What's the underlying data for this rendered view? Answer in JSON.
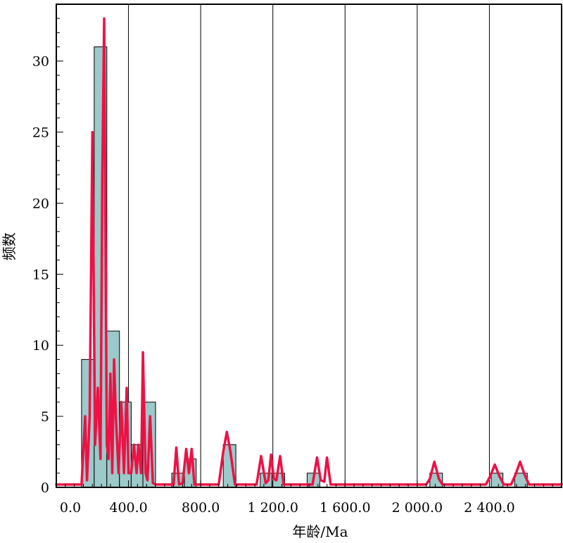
{
  "chart_data": {
    "type": "bar",
    "xlabel": "年龄/Ma",
    "ylabel": "频数",
    "xlim": [
      0,
      2800
    ],
    "ylim": [
      0,
      34
    ],
    "x_ticks": [
      0,
      400,
      800,
      1200,
      1600,
      2000,
      2400
    ],
    "x_tick_labels": [
      "0.0",
      "400.0",
      "800.0",
      "1 200.0",
      "1 600.0",
      "2 000.0",
      "2 400.0"
    ],
    "y_ticks": [
      0,
      5,
      10,
      15,
      20,
      25,
      30
    ],
    "y_tick_labels": [
      "0",
      "5",
      "10",
      "15",
      "20",
      "25",
      "30"
    ],
    "grid": "vertical lines at major x ticks",
    "colors": {
      "bar_fill": "#9cc9c9",
      "bar_stroke": "#000000",
      "curve": "#ee1144"
    },
    "bins": [
      {
        "x0": 140,
        "x1": 210,
        "count": 9
      },
      {
        "x0": 210,
        "x1": 280,
        "count": 31
      },
      {
        "x0": 280,
        "x1": 350,
        "count": 11
      },
      {
        "x0": 350,
        "x1": 415,
        "count": 6
      },
      {
        "x0": 415,
        "x1": 480,
        "count": 3
      },
      {
        "x0": 480,
        "x1": 550,
        "count": 6
      },
      {
        "x0": 640,
        "x1": 710,
        "count": 1
      },
      {
        "x0": 710,
        "x1": 775,
        "count": 2
      },
      {
        "x0": 925,
        "x1": 995,
        "count": 3
      },
      {
        "x0": 1130,
        "x1": 1195,
        "count": 1
      },
      {
        "x0": 1195,
        "x1": 1265,
        "count": 1
      },
      {
        "x0": 1390,
        "x1": 1460,
        "count": 1
      },
      {
        "x0": 2070,
        "x1": 2140,
        "count": 1
      },
      {
        "x0": 2410,
        "x1": 2475,
        "count": 1
      },
      {
        "x0": 2540,
        "x1": 2610,
        "count": 1
      }
    ],
    "probability_density_curve": [
      [
        0,
        0.2
      ],
      [
        140,
        0.2
      ],
      [
        160,
        5
      ],
      [
        170,
        0.5
      ],
      [
        185,
        5
      ],
      [
        200,
        25
      ],
      [
        215,
        3
      ],
      [
        230,
        7
      ],
      [
        245,
        2
      ],
      [
        255,
        22
      ],
      [
        265,
        33
      ],
      [
        280,
        3
      ],
      [
        290,
        2
      ],
      [
        300,
        8
      ],
      [
        310,
        1
      ],
      [
        320,
        9
      ],
      [
        330,
        5
      ],
      [
        345,
        1
      ],
      [
        360,
        6
      ],
      [
        375,
        1
      ],
      [
        390,
        7
      ],
      [
        400,
        1
      ],
      [
        415,
        1
      ],
      [
        430,
        3
      ],
      [
        445,
        1
      ],
      [
        455,
        3
      ],
      [
        470,
        1
      ],
      [
        480,
        9.5
      ],
      [
        495,
        1
      ],
      [
        505,
        0.5
      ],
      [
        520,
        5
      ],
      [
        535,
        0.3
      ],
      [
        550,
        0.2
      ],
      [
        650,
        0.2
      ],
      [
        665,
        2.8
      ],
      [
        680,
        0.2
      ],
      [
        700,
        0.3
      ],
      [
        720,
        2.7
      ],
      [
        735,
        1
      ],
      [
        750,
        2.7
      ],
      [
        765,
        0.2
      ],
      [
        900,
        0.2
      ],
      [
        925,
        2.5
      ],
      [
        945,
        3.9
      ],
      [
        965,
        2.5
      ],
      [
        990,
        0.2
      ],
      [
        1110,
        0.2
      ],
      [
        1135,
        2.2
      ],
      [
        1160,
        0.3
      ],
      [
        1175,
        0.5
      ],
      [
        1190,
        2.3
      ],
      [
        1205,
        0.6
      ],
      [
        1220,
        0.5
      ],
      [
        1240,
        2.2
      ],
      [
        1260,
        0.2
      ],
      [
        1420,
        0.2
      ],
      [
        1445,
        2.1
      ],
      [
        1465,
        0.5
      ],
      [
        1485,
        0.4
      ],
      [
        1500,
        2.1
      ],
      [
        1520,
        0.2
      ],
      [
        2050,
        0.2
      ],
      [
        2070,
        0.6
      ],
      [
        2095,
        1.8
      ],
      [
        2120,
        0.6
      ],
      [
        2140,
        0.2
      ],
      [
        2380,
        0.2
      ],
      [
        2405,
        0.8
      ],
      [
        2430,
        1.6
      ],
      [
        2455,
        0.8
      ],
      [
        2480,
        0.2
      ],
      [
        2520,
        0.2
      ],
      [
        2545,
        0.9
      ],
      [
        2570,
        1.8
      ],
      [
        2595,
        0.9
      ],
      [
        2620,
        0.2
      ],
      [
        2800,
        0.2
      ]
    ]
  }
}
